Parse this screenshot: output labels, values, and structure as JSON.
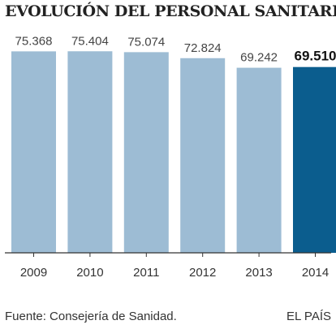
{
  "chart_data": {
    "type": "bar",
    "title": "EVOLUCIÓN DEL PERSONAL SANITARIO",
    "categories": [
      "2009",
      "2010",
      "2011",
      "2012",
      "2013",
      "2014"
    ],
    "values": [
      75368,
      75404,
      75074,
      72824,
      69242,
      69510
    ],
    "value_labels": [
      "75.368",
      "75.404",
      "75.074",
      "72.824",
      "69.242",
      "69.510"
    ],
    "highlight_index": 5,
    "ylim": [
      0,
      77000
    ],
    "grid": false,
    "colors": {
      "bar": "#9dbcd4",
      "highlight": "#0b5d8e",
      "baseline": "#333333"
    }
  },
  "footer": {
    "source": "Fuente: Consejería de Sanidad.",
    "brand": "EL PAÍS"
  }
}
